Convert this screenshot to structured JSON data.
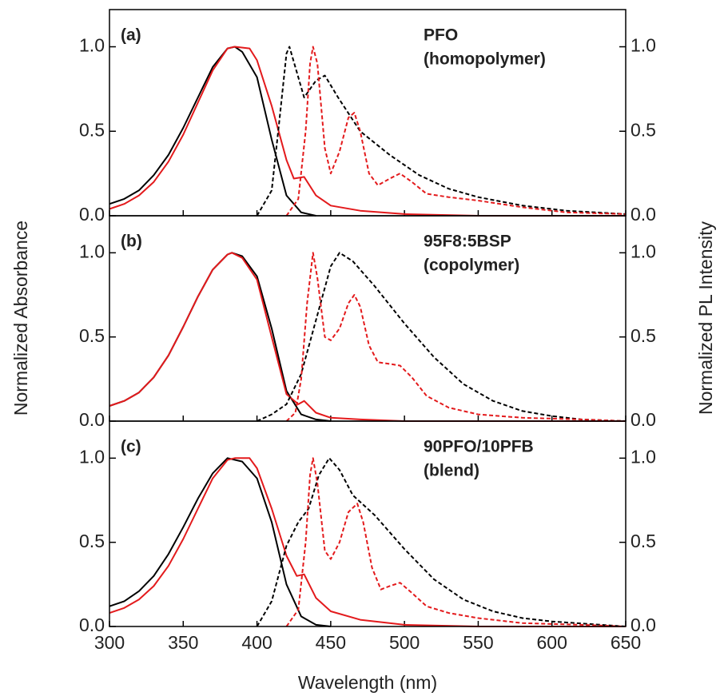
{
  "chart_data": [
    {
      "type": "line",
      "label": "(a)",
      "annotation": [
        "PFO",
        "(homopolymer)"
      ],
      "xlim": [
        300,
        650
      ],
      "xticks": [
        300,
        350,
        400,
        450,
        500,
        550,
        600,
        650
      ],
      "ylim": [
        0,
        1.22
      ],
      "yticks": [
        {
          "value": 0,
          "label": "0.0"
        },
        0.5,
        {
          "value": 1,
          "label": "1.0"
        }
      ],
      "y2lim": [
        0,
        1.22
      ],
      "y2ticks": [
        {
          "value": 0,
          "label": "0.0"
        },
        0.5,
        {
          "value": 1,
          "label": "1.0"
        }
      ],
      "series": [
        {
          "color": "#000000",
          "dash": false,
          "x": [
            300,
            310,
            320,
            330,
            340,
            350,
            360,
            370,
            380,
            385,
            390,
            400,
            410,
            420,
            430,
            440
          ],
          "values": [
            0.07,
            0.1,
            0.15,
            0.24,
            0.36,
            0.52,
            0.7,
            0.88,
            0.99,
            1.0,
            0.97,
            0.82,
            0.45,
            0.12,
            0.02,
            0.0
          ]
        },
        {
          "color": "#e31a1c",
          "dash": false,
          "x": [
            300,
            310,
            320,
            330,
            340,
            350,
            360,
            370,
            380,
            385,
            395,
            400,
            410,
            420,
            425,
            432,
            440,
            450,
            470,
            500,
            550,
            650
          ],
          "values": [
            0.04,
            0.07,
            0.12,
            0.2,
            0.32,
            0.48,
            0.67,
            0.86,
            0.99,
            1.0,
            0.99,
            0.92,
            0.65,
            0.33,
            0.22,
            0.23,
            0.12,
            0.06,
            0.03,
            0.01,
            0.0,
            0.0
          ]
        },
        {
          "color": "#000000",
          "dash": true,
          "axis": "y2",
          "x": [
            400,
            410,
            415,
            420,
            422,
            427,
            432,
            440,
            446,
            455,
            470,
            490,
            510,
            530,
            550,
            580,
            610,
            650
          ],
          "values": [
            0.0,
            0.15,
            0.55,
            0.96,
            1.0,
            0.85,
            0.7,
            0.8,
            0.83,
            0.7,
            0.5,
            0.36,
            0.24,
            0.16,
            0.11,
            0.06,
            0.03,
            0.01
          ]
        },
        {
          "color": "#e31a1c",
          "dash": true,
          "axis": "y2",
          "x": [
            420,
            428,
            433,
            436,
            438,
            441,
            446,
            450,
            456,
            462,
            466,
            470,
            476,
            482,
            490,
            497,
            505,
            515,
            530,
            550,
            580,
            610,
            650
          ],
          "values": [
            0.0,
            0.1,
            0.5,
            0.9,
            1.0,
            0.9,
            0.4,
            0.25,
            0.38,
            0.58,
            0.61,
            0.5,
            0.25,
            0.18,
            0.22,
            0.25,
            0.2,
            0.13,
            0.11,
            0.09,
            0.05,
            0.02,
            0.01
          ]
        }
      ]
    },
    {
      "type": "line",
      "label": "(b)",
      "annotation": [
        "95F8:5BSP",
        "(copolymer)"
      ],
      "ylabel": "Normalized Absorbance",
      "y2label": "Normalized PL Intensity",
      "xlim": [
        300,
        650
      ],
      "xticks": [
        300,
        350,
        400,
        450,
        500,
        550,
        600,
        650
      ],
      "ylim": [
        0,
        1.22
      ],
      "yticks": [
        {
          "value": 0,
          "label": "0.0"
        },
        0.5,
        {
          "value": 1,
          "label": "1.0"
        }
      ],
      "y2lim": [
        0,
        1.22
      ],
      "y2ticks": [
        {
          "value": 0,
          "label": "0.0"
        },
        0.5,
        {
          "value": 1,
          "label": "1.0"
        }
      ],
      "series": [
        {
          "color": "#000000",
          "dash": false,
          "x": [
            300,
            310,
            320,
            330,
            340,
            350,
            360,
            370,
            380,
            383,
            390,
            400,
            410,
            420,
            430,
            440,
            450
          ],
          "values": [
            0.09,
            0.12,
            0.17,
            0.26,
            0.39,
            0.56,
            0.74,
            0.9,
            0.99,
            1.0,
            0.98,
            0.86,
            0.55,
            0.18,
            0.04,
            0.01,
            0.0
          ]
        },
        {
          "color": "#e31a1c",
          "dash": false,
          "x": [
            300,
            310,
            320,
            330,
            340,
            350,
            360,
            370,
            380,
            383,
            390,
            400,
            410,
            420,
            428,
            432,
            440,
            450,
            470,
            500,
            650
          ],
          "values": [
            0.09,
            0.12,
            0.17,
            0.26,
            0.39,
            0.56,
            0.74,
            0.9,
            0.99,
            1.0,
            0.97,
            0.84,
            0.5,
            0.16,
            0.1,
            0.12,
            0.05,
            0.02,
            0.01,
            0.0,
            0.0
          ]
        },
        {
          "color": "#000000",
          "dash": true,
          "axis": "y2",
          "x": [
            400,
            410,
            420,
            430,
            440,
            450,
            456,
            465,
            480,
            500,
            520,
            540,
            560,
            580,
            600,
            620,
            650
          ],
          "values": [
            0.0,
            0.04,
            0.1,
            0.28,
            0.6,
            0.92,
            1.0,
            0.95,
            0.8,
            0.58,
            0.38,
            0.22,
            0.12,
            0.06,
            0.03,
            0.01,
            0.0
          ]
        },
        {
          "color": "#e31a1c",
          "dash": true,
          "axis": "y2",
          "x": [
            420,
            426,
            430,
            434,
            438,
            441,
            446,
            450,
            456,
            462,
            466,
            470,
            476,
            482,
            490,
            497,
            505,
            515,
            530,
            550,
            580,
            620,
            650
          ],
          "values": [
            0.0,
            0.05,
            0.25,
            0.7,
            1.0,
            0.85,
            0.5,
            0.48,
            0.55,
            0.7,
            0.75,
            0.68,
            0.45,
            0.35,
            0.34,
            0.33,
            0.26,
            0.15,
            0.08,
            0.04,
            0.02,
            0.01,
            0.0
          ]
        }
      ]
    },
    {
      "type": "line",
      "label": "(c)",
      "annotation": [
        "90PFO/10PFB",
        "(blend)"
      ],
      "xlabel": "Wavelength (nm)",
      "xticklabels": true,
      "xlim": [
        300,
        650
      ],
      "xticks": [
        300,
        350,
        400,
        450,
        500,
        550,
        600,
        650
      ],
      "ylim": [
        0,
        1.22
      ],
      "yticks": [
        {
          "value": 0,
          "label": "0.0"
        },
        0.5,
        {
          "value": 1,
          "label": "1.0"
        }
      ],
      "y2lim": [
        0,
        1.22
      ],
      "y2ticks": [
        {
          "value": 0,
          "label": "0.0"
        },
        0.5,
        {
          "value": 1,
          "label": "1.0"
        }
      ],
      "series": [
        {
          "color": "#000000",
          "dash": false,
          "x": [
            300,
            310,
            320,
            330,
            340,
            350,
            360,
            370,
            380,
            390,
            400,
            410,
            420,
            430,
            440,
            450
          ],
          "values": [
            0.12,
            0.15,
            0.21,
            0.3,
            0.43,
            0.59,
            0.76,
            0.91,
            1.0,
            0.98,
            0.88,
            0.62,
            0.25,
            0.06,
            0.01,
            0.0
          ]
        },
        {
          "color": "#e31a1c",
          "dash": false,
          "x": [
            300,
            310,
            320,
            330,
            340,
            350,
            360,
            370,
            380,
            385,
            395,
            400,
            410,
            420,
            427,
            432,
            440,
            450,
            470,
            500,
            550,
            650
          ],
          "values": [
            0.08,
            0.11,
            0.16,
            0.24,
            0.36,
            0.52,
            0.7,
            0.88,
            0.99,
            1.0,
            1.0,
            0.94,
            0.7,
            0.42,
            0.3,
            0.31,
            0.17,
            0.09,
            0.04,
            0.01,
            0.0,
            0.0
          ]
        },
        {
          "color": "#000000",
          "dash": true,
          "axis": "y2",
          "x": [
            400,
            410,
            420,
            428,
            435,
            442,
            449,
            456,
            465,
            480,
            500,
            520,
            540,
            560,
            580,
            600,
            650
          ],
          "values": [
            0.0,
            0.15,
            0.48,
            0.62,
            0.7,
            0.9,
            1.0,
            0.93,
            0.78,
            0.66,
            0.46,
            0.28,
            0.16,
            0.09,
            0.05,
            0.03,
            0.0
          ]
        },
        {
          "color": "#e31a1c",
          "dash": true,
          "axis": "y2",
          "x": [
            420,
            428,
            433,
            436,
            438,
            441,
            446,
            450,
            456,
            462,
            468,
            472,
            478,
            484,
            490,
            497,
            505,
            515,
            530,
            550,
            580,
            620,
            650
          ],
          "values": [
            0.0,
            0.1,
            0.5,
            0.9,
            1.0,
            0.85,
            0.45,
            0.4,
            0.5,
            0.68,
            0.73,
            0.62,
            0.35,
            0.22,
            0.24,
            0.26,
            0.2,
            0.12,
            0.08,
            0.05,
            0.02,
            0.01,
            0.0
          ]
        }
      ]
    }
  ]
}
